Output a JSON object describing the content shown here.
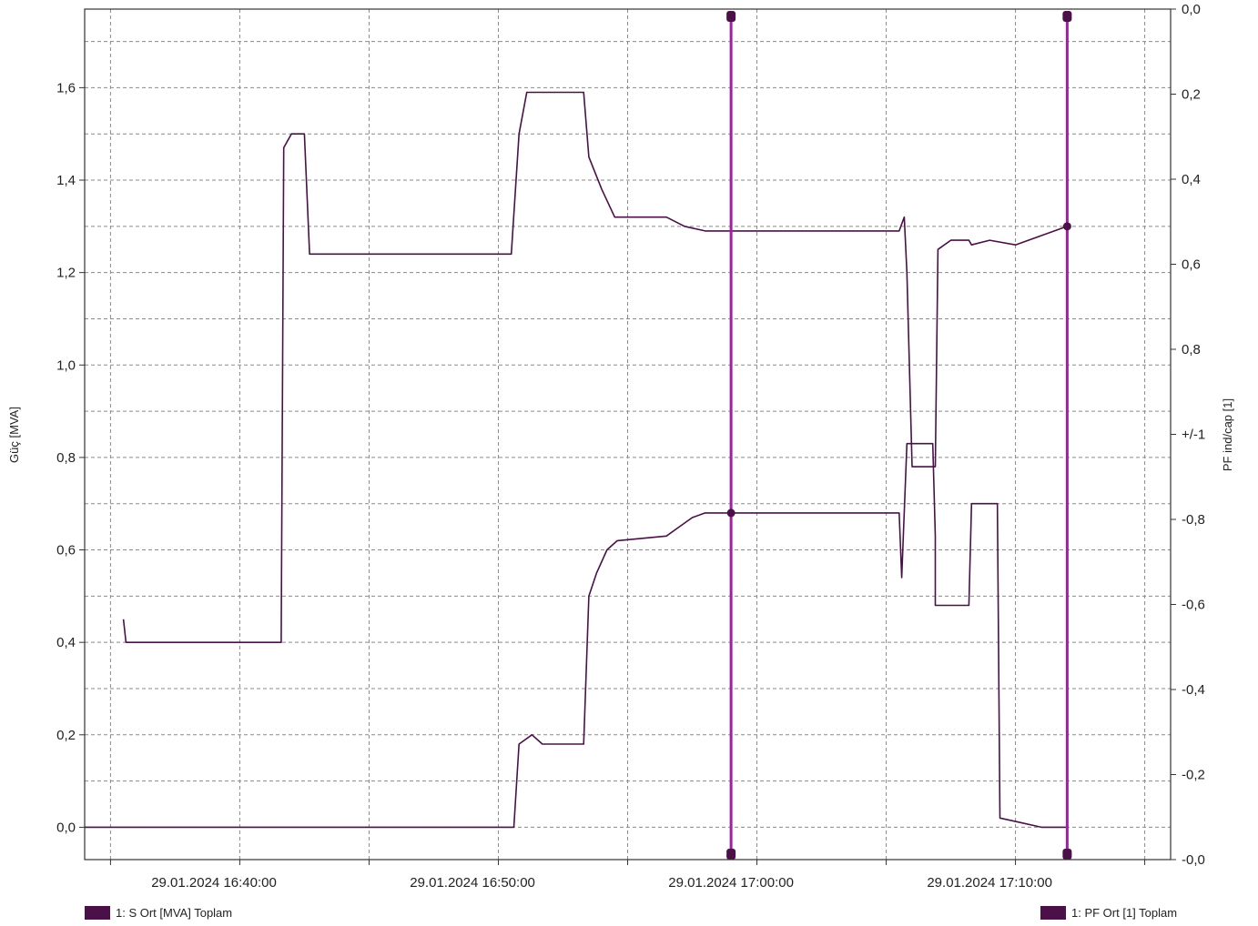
{
  "chart_data": {
    "type": "line",
    "title": "",
    "ylabel": "Güç [MVA]",
    "y2label": "PF ind/cap [1]",
    "ylim": [
      -0.07,
      1.77
    ],
    "y_ticks": [
      "0,0",
      "0,2",
      "0,4",
      "0,6",
      "0,8",
      "1,0",
      "1,2",
      "1,4",
      "1,6"
    ],
    "y_tick_values": [
      0.0,
      0.2,
      0.4,
      0.6,
      0.8,
      1.0,
      1.2,
      1.4,
      1.6
    ],
    "y2_ticks": [
      "0,0",
      "0,2",
      "0,4",
      "0,6",
      "0,8",
      "+/-1",
      "-0,8",
      "-0,6",
      "-0,4",
      "-0,2",
      "-0,0"
    ],
    "xlim": [
      "29.01.2024 16:35:00",
      "29.01.2024 17:17:00"
    ],
    "x_ticks": [
      "29.01.2024 16:40:00",
      "29.01.2024 16:50:00",
      "29.01.2024 17:00:00",
      "29.01.2024 17:10:00"
    ],
    "x_tick_minutes": [
      40,
      50,
      60,
      70
    ],
    "grid": true,
    "legend_placement": "bottom",
    "cursors": [
      {
        "time": "29.01.2024 17:00:00"
      },
      {
        "time": "29.01.2024 17:13:00"
      }
    ],
    "series": [
      {
        "name": "1: S Ort [MVA] Toplam",
        "color": "#4b1048",
        "axis": "left",
        "points": [
          [
            35.0,
            0.0
          ],
          [
            51.6,
            0.0
          ],
          [
            51.8,
            0.18
          ],
          [
            52.3,
            0.2
          ],
          [
            52.7,
            0.18
          ],
          [
            54.3,
            0.18
          ],
          [
            54.5,
            0.5
          ],
          [
            54.8,
            0.55
          ],
          [
            55.2,
            0.6
          ],
          [
            55.6,
            0.62
          ],
          [
            57.5,
            0.63
          ],
          [
            58.0,
            0.65
          ],
          [
            58.5,
            0.67
          ],
          [
            59.0,
            0.68
          ],
          [
            60.5,
            0.68
          ],
          [
            62.0,
            0.68
          ],
          [
            66.5,
            0.68
          ],
          [
            66.6,
            0.54
          ],
          [
            66.8,
            0.83
          ],
          [
            67.8,
            0.83
          ],
          [
            67.9,
            0.63
          ],
          [
            67.9,
            0.48
          ],
          [
            69.2,
            0.48
          ],
          [
            69.3,
            0.7
          ],
          [
            70.3,
            0.7
          ],
          [
            70.4,
            0.02
          ],
          [
            71.2,
            0.01
          ],
          [
            72.0,
            0.0
          ],
          [
            73.0,
            0.0
          ]
        ]
      },
      {
        "name": "1: PF Ort [1] Toplam",
        "color": "#4b1048",
        "axis": "right",
        "points": [
          [
            36.5,
            0.45
          ],
          [
            36.6,
            0.4
          ],
          [
            38.0,
            0.4
          ],
          [
            40.0,
            0.4
          ],
          [
            42.0,
            0.4
          ],
          [
            42.6,
            0.4
          ],
          [
            42.7,
            1.47
          ],
          [
            43.0,
            1.5
          ],
          [
            43.5,
            1.5
          ],
          [
            43.7,
            1.24
          ],
          [
            44.0,
            1.24
          ],
          [
            48.0,
            1.24
          ],
          [
            51.5,
            1.24
          ],
          [
            51.8,
            1.5
          ],
          [
            52.1,
            1.59
          ],
          [
            52.3,
            1.59
          ],
          [
            54.3,
            1.59
          ],
          [
            54.5,
            1.45
          ],
          [
            55.0,
            1.38
          ],
          [
            55.5,
            1.32
          ],
          [
            57.5,
            1.32
          ],
          [
            58.2,
            1.3
          ],
          [
            59.0,
            1.29
          ],
          [
            62.0,
            1.29
          ],
          [
            65.0,
            1.29
          ],
          [
            66.5,
            1.29
          ],
          [
            66.7,
            1.32
          ],
          [
            66.8,
            1.2
          ],
          [
            67.0,
            0.78
          ],
          [
            67.9,
            0.78
          ],
          [
            68.0,
            1.25
          ],
          [
            68.5,
            1.27
          ],
          [
            69.2,
            1.27
          ],
          [
            69.3,
            1.26
          ],
          [
            70.0,
            1.27
          ],
          [
            71.0,
            1.26
          ],
          [
            72.0,
            1.28
          ],
          [
            73.0,
            1.3
          ]
        ]
      }
    ]
  },
  "legend": {
    "left_label": "1: S Ort [MVA] Toplam",
    "right_label": "1: PF Ort [1] Toplam"
  },
  "colors": {
    "series": "#4b1048",
    "cursor": "#a21ea8",
    "grid": "#8a8a8a",
    "axis": "#333333"
  }
}
